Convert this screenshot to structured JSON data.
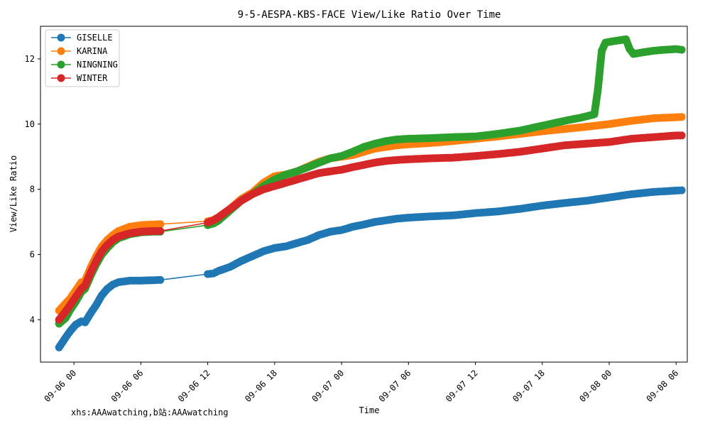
{
  "footer_text": "xhs:AAAwatching,b站:AAAwatching",
  "chart_data": {
    "type": "line",
    "title": "9-5-AESPA-KBS-FACE View/Like Ratio Over Time",
    "xlabel": "Time",
    "ylabel": "View/Like Ratio",
    "x_unit": "datetime",
    "xlim": [
      "2024-09-05 21:00",
      "2024-09-08 07:00"
    ],
    "ylim": [
      2.7,
      13.0
    ],
    "x_ticks": [
      {
        "label": "09-06 00",
        "value": "2024-09-06 00:00"
      },
      {
        "label": "09-06 06",
        "value": "2024-09-06 06:00"
      },
      {
        "label": "09-06 12",
        "value": "2024-09-06 12:00"
      },
      {
        "label": "09-06 18",
        "value": "2024-09-06 18:00"
      },
      {
        "label": "09-07 00",
        "value": "2024-09-07 00:00"
      },
      {
        "label": "09-07 06",
        "value": "2024-09-07 06:00"
      },
      {
        "label": "09-07 12",
        "value": "2024-09-07 12:00"
      },
      {
        "label": "09-07 18",
        "value": "2024-09-07 18:00"
      },
      {
        "label": "09-08 00",
        "value": "2024-09-08 00:00"
      },
      {
        "label": "09-08 06",
        "value": "2024-09-08 06:00"
      }
    ],
    "y_ticks": [
      4,
      6,
      8,
      10,
      12
    ],
    "grid": false,
    "legend_position": "top-left",
    "series": [
      {
        "name": "GISELLE",
        "color": "#1f77b4",
        "points": [
          [
            "2024-09-05 22:40",
            3.15
          ],
          [
            "2024-09-05 23:15",
            3.45
          ],
          [
            "2024-09-05 23:40",
            3.65
          ],
          [
            "2024-09-06 00:10",
            3.85
          ],
          [
            "2024-09-06 00:40",
            3.95
          ],
          [
            "2024-09-06 01:00",
            3.92
          ],
          [
            "2024-09-06 01:30",
            4.2
          ],
          [
            "2024-09-06 02:00",
            4.45
          ],
          [
            "2024-09-06 02:30",
            4.75
          ],
          [
            "2024-09-06 03:00",
            4.95
          ],
          [
            "2024-09-06 03:30",
            5.08
          ],
          [
            "2024-09-06 04:00",
            5.15
          ],
          [
            "2024-09-06 05:00",
            5.2
          ],
          [
            "2024-09-06 06:00",
            5.2
          ],
          [
            "2024-09-06 07:00",
            5.21
          ],
          [
            "2024-09-06 07:45",
            5.22
          ],
          [
            "2024-09-06 12:00",
            5.4
          ],
          [
            "2024-09-06 12:30",
            5.42
          ],
          [
            "2024-09-06 13:00",
            5.5
          ],
          [
            "2024-09-06 14:00",
            5.62
          ],
          [
            "2024-09-06 15:00",
            5.8
          ],
          [
            "2024-09-06 16:00",
            5.95
          ],
          [
            "2024-09-06 17:00",
            6.1
          ],
          [
            "2024-09-06 18:00",
            6.2
          ],
          [
            "2024-09-06 19:00",
            6.25
          ],
          [
            "2024-09-06 20:00",
            6.35
          ],
          [
            "2024-09-06 21:00",
            6.45
          ],
          [
            "2024-09-06 22:00",
            6.6
          ],
          [
            "2024-09-06 23:00",
            6.7
          ],
          [
            "2024-09-07 00:00",
            6.75
          ],
          [
            "2024-09-07 01:00",
            6.85
          ],
          [
            "2024-09-07 02:00",
            6.92
          ],
          [
            "2024-09-07 03:00",
            7.0
          ],
          [
            "2024-09-07 04:00",
            7.05
          ],
          [
            "2024-09-07 05:00",
            7.1
          ],
          [
            "2024-09-07 06:00",
            7.13
          ],
          [
            "2024-09-07 08:00",
            7.17
          ],
          [
            "2024-09-07 10:00",
            7.2
          ],
          [
            "2024-09-07 12:00",
            7.27
          ],
          [
            "2024-09-07 14:00",
            7.32
          ],
          [
            "2024-09-07 16:00",
            7.4
          ],
          [
            "2024-09-07 18:00",
            7.5
          ],
          [
            "2024-09-07 20:00",
            7.58
          ],
          [
            "2024-09-07 22:00",
            7.65
          ],
          [
            "2024-09-08 00:00",
            7.75
          ],
          [
            "2024-09-08 02:00",
            7.85
          ],
          [
            "2024-09-08 04:00",
            7.92
          ],
          [
            "2024-09-08 06:00",
            7.96
          ],
          [
            "2024-09-08 06:30",
            7.97
          ]
        ]
      },
      {
        "name": "KARINA",
        "color": "#ff7f0e",
        "points": [
          [
            "2024-09-05 22:40",
            4.28
          ],
          [
            "2024-09-05 23:15",
            4.5
          ],
          [
            "2024-09-05 23:40",
            4.65
          ],
          [
            "2024-09-06 00:10",
            4.9
          ],
          [
            "2024-09-06 00:40",
            5.15
          ],
          [
            "2024-09-06 01:00",
            5.2
          ],
          [
            "2024-09-06 01:30",
            5.6
          ],
          [
            "2024-09-06 02:00",
            5.95
          ],
          [
            "2024-09-06 02:30",
            6.25
          ],
          [
            "2024-09-06 03:00",
            6.45
          ],
          [
            "2024-09-06 03:30",
            6.6
          ],
          [
            "2024-09-06 04:00",
            6.72
          ],
          [
            "2024-09-06 05:00",
            6.85
          ],
          [
            "2024-09-06 06:00",
            6.9
          ],
          [
            "2024-09-06 07:00",
            6.92
          ],
          [
            "2024-09-06 07:45",
            6.93
          ],
          [
            "2024-09-06 12:00",
            7.02
          ],
          [
            "2024-09-06 12:30",
            7.05
          ],
          [
            "2024-09-06 13:00",
            7.15
          ],
          [
            "2024-09-06 14:00",
            7.4
          ],
          [
            "2024-09-06 15:00",
            7.7
          ],
          [
            "2024-09-06 16:00",
            7.9
          ],
          [
            "2024-09-06 17:00",
            8.2
          ],
          [
            "2024-09-06 18:00",
            8.4
          ],
          [
            "2024-09-06 19:00",
            8.45
          ],
          [
            "2024-09-06 20:00",
            8.55
          ],
          [
            "2024-09-06 21:00",
            8.7
          ],
          [
            "2024-09-06 22:00",
            8.85
          ],
          [
            "2024-09-06 23:00",
            8.95
          ],
          [
            "2024-09-07 00:00",
            9.0
          ],
          [
            "2024-09-07 01:00",
            9.05
          ],
          [
            "2024-09-07 02:00",
            9.15
          ],
          [
            "2024-09-07 03:00",
            9.25
          ],
          [
            "2024-09-07 04:00",
            9.3
          ],
          [
            "2024-09-07 05:00",
            9.35
          ],
          [
            "2024-09-07 06:00",
            9.38
          ],
          [
            "2024-09-07 08:00",
            9.42
          ],
          [
            "2024-09-07 10:00",
            9.48
          ],
          [
            "2024-09-07 12:00",
            9.55
          ],
          [
            "2024-09-07 14:00",
            9.62
          ],
          [
            "2024-09-07 16:00",
            9.7
          ],
          [
            "2024-09-07 18:00",
            9.78
          ],
          [
            "2024-09-07 20:00",
            9.85
          ],
          [
            "2024-09-07 22:00",
            9.92
          ],
          [
            "2024-09-08 00:00",
            10.0
          ],
          [
            "2024-09-08 02:00",
            10.1
          ],
          [
            "2024-09-08 04:00",
            10.18
          ],
          [
            "2024-09-08 06:00",
            10.21
          ],
          [
            "2024-09-08 06:30",
            10.22
          ]
        ]
      },
      {
        "name": "NINGNING",
        "color": "#2ca02c",
        "points": [
          [
            "2024-09-05 22:40",
            3.88
          ],
          [
            "2024-09-05 23:15",
            4.05
          ],
          [
            "2024-09-05 23:40",
            4.3
          ],
          [
            "2024-09-06 00:10",
            4.55
          ],
          [
            "2024-09-06 00:40",
            4.85
          ],
          [
            "2024-09-06 01:00",
            4.95
          ],
          [
            "2024-09-06 01:30",
            5.35
          ],
          [
            "2024-09-06 02:00",
            5.7
          ],
          [
            "2024-09-06 02:30",
            6.0
          ],
          [
            "2024-09-06 03:00",
            6.2
          ],
          [
            "2024-09-06 03:30",
            6.38
          ],
          [
            "2024-09-06 04:00",
            6.5
          ],
          [
            "2024-09-06 05:00",
            6.62
          ],
          [
            "2024-09-06 06:00",
            6.68
          ],
          [
            "2024-09-06 07:00",
            6.7
          ],
          [
            "2024-09-06 07:45",
            6.7
          ],
          [
            "2024-09-06 12:00",
            6.9
          ],
          [
            "2024-09-06 12:30",
            6.95
          ],
          [
            "2024-09-06 13:00",
            7.05
          ],
          [
            "2024-09-06 14:00",
            7.35
          ],
          [
            "2024-09-06 15:00",
            7.65
          ],
          [
            "2024-09-06 16:00",
            7.85
          ],
          [
            "2024-09-06 17:00",
            8.1
          ],
          [
            "2024-09-06 18:00",
            8.3
          ],
          [
            "2024-09-06 19:00",
            8.45
          ],
          [
            "2024-09-06 20:00",
            8.55
          ],
          [
            "2024-09-06 21:00",
            8.68
          ],
          [
            "2024-09-06 22:00",
            8.82
          ],
          [
            "2024-09-06 23:00",
            8.95
          ],
          [
            "2024-09-07 00:00",
            9.02
          ],
          [
            "2024-09-07 01:00",
            9.15
          ],
          [
            "2024-09-07 02:00",
            9.3
          ],
          [
            "2024-09-07 03:00",
            9.4
          ],
          [
            "2024-09-07 04:00",
            9.48
          ],
          [
            "2024-09-07 05:00",
            9.53
          ],
          [
            "2024-09-07 06:00",
            9.55
          ],
          [
            "2024-09-07 08:00",
            9.57
          ],
          [
            "2024-09-07 10:00",
            9.6
          ],
          [
            "2024-09-07 12:00",
            9.62
          ],
          [
            "2024-09-07 14:00",
            9.7
          ],
          [
            "2024-09-07 16:00",
            9.8
          ],
          [
            "2024-09-07 18:00",
            9.95
          ],
          [
            "2024-09-07 20:00",
            10.1
          ],
          [
            "2024-09-07 21:30",
            10.2
          ],
          [
            "2024-09-07 22:40",
            10.3
          ],
          [
            "2024-09-07 22:50",
            10.7
          ],
          [
            "2024-09-07 23:00",
            11.1
          ],
          [
            "2024-09-07 23:10",
            11.7
          ],
          [
            "2024-09-07 23:20",
            12.25
          ],
          [
            "2024-09-07 23:40",
            12.5
          ],
          [
            "2024-09-08 00:30",
            12.55
          ],
          [
            "2024-09-08 01:30",
            12.6
          ],
          [
            "2024-09-08 01:50",
            12.3
          ],
          [
            "2024-09-08 02:10",
            12.15
          ],
          [
            "2024-09-08 03:00",
            12.2
          ],
          [
            "2024-09-08 04:00",
            12.25
          ],
          [
            "2024-09-08 05:00",
            12.28
          ],
          [
            "2024-09-08 06:00",
            12.3
          ],
          [
            "2024-09-08 06:30",
            12.28
          ]
        ]
      },
      {
        "name": "WINTER",
        "color": "#d62728",
        "points": [
          [
            "2024-09-05 22:40",
            4.0
          ],
          [
            "2024-09-05 23:15",
            4.25
          ],
          [
            "2024-09-05 23:40",
            4.45
          ],
          [
            "2024-09-06 00:10",
            4.7
          ],
          [
            "2024-09-06 00:40",
            4.95
          ],
          [
            "2024-09-06 01:00",
            5.05
          ],
          [
            "2024-09-06 01:30",
            5.45
          ],
          [
            "2024-09-06 02:00",
            5.8
          ],
          [
            "2024-09-06 02:30",
            6.1
          ],
          [
            "2024-09-06 03:00",
            6.3
          ],
          [
            "2024-09-06 03:30",
            6.45
          ],
          [
            "2024-09-06 04:00",
            6.55
          ],
          [
            "2024-09-06 05:00",
            6.65
          ],
          [
            "2024-09-06 06:00",
            6.7
          ],
          [
            "2024-09-06 07:00",
            6.72
          ],
          [
            "2024-09-06 07:45",
            6.72
          ],
          [
            "2024-09-06 12:00",
            6.98
          ],
          [
            "2024-09-06 12:30",
            7.05
          ],
          [
            "2024-09-06 13:00",
            7.15
          ],
          [
            "2024-09-06 14:00",
            7.4
          ],
          [
            "2024-09-06 15:00",
            7.65
          ],
          [
            "2024-09-06 16:00",
            7.85
          ],
          [
            "2024-09-06 17:00",
            8.0
          ],
          [
            "2024-09-06 18:00",
            8.1
          ],
          [
            "2024-09-06 19:00",
            8.2
          ],
          [
            "2024-09-06 20:00",
            8.3
          ],
          [
            "2024-09-06 21:00",
            8.4
          ],
          [
            "2024-09-06 22:00",
            8.5
          ],
          [
            "2024-09-06 23:00",
            8.55
          ],
          [
            "2024-09-07 00:00",
            8.6
          ],
          [
            "2024-09-07 01:00",
            8.68
          ],
          [
            "2024-09-07 02:00",
            8.75
          ],
          [
            "2024-09-07 03:00",
            8.82
          ],
          [
            "2024-09-07 04:00",
            8.87
          ],
          [
            "2024-09-07 05:00",
            8.9
          ],
          [
            "2024-09-07 06:00",
            8.92
          ],
          [
            "2024-09-07 08:00",
            8.95
          ],
          [
            "2024-09-07 10:00",
            8.97
          ],
          [
            "2024-09-07 12:00",
            9.02
          ],
          [
            "2024-09-07 14:00",
            9.08
          ],
          [
            "2024-09-07 16:00",
            9.15
          ],
          [
            "2024-09-07 18:00",
            9.25
          ],
          [
            "2024-09-07 20:00",
            9.35
          ],
          [
            "2024-09-07 22:00",
            9.4
          ],
          [
            "2024-09-08 00:00",
            9.45
          ],
          [
            "2024-09-08 02:00",
            9.55
          ],
          [
            "2024-09-08 04:00",
            9.6
          ],
          [
            "2024-09-08 06:00",
            9.65
          ],
          [
            "2024-09-08 06:30",
            9.65
          ]
        ]
      }
    ]
  }
}
